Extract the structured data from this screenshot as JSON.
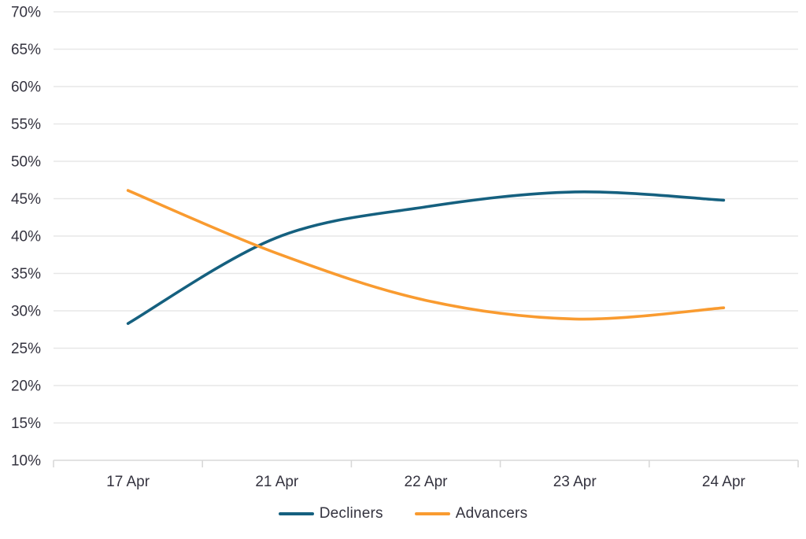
{
  "chart_data": {
    "type": "line",
    "title": "",
    "xlabel": "",
    "ylabel": "",
    "categories": [
      "17 Apr",
      "21 Apr",
      "22 Apr",
      "23 Apr",
      "24 Apr"
    ],
    "series": [
      {
        "name": "Decliners",
        "color": "#15607F",
        "values": [
          28.3,
          39.8,
          43.9,
          45.9,
          44.8
        ]
      },
      {
        "name": "Advancers",
        "color": "#F99B30",
        "values": [
          46.1,
          37.7,
          31.4,
          28.9,
          30.4
        ]
      }
    ],
    "ylim": [
      10,
      70
    ],
    "ytick_step": 5,
    "ytick_labels": [
      "70%",
      "65%",
      "60%",
      "55%",
      "50%",
      "45%",
      "40%",
      "35%",
      "30%",
      "25%",
      "20%",
      "15%",
      "10%"
    ],
    "grid": true,
    "line_smoothing": true,
    "legend_position": "bottom",
    "colors": {
      "axis_text": "#34333F",
      "gridline": "#E7E7E7",
      "axis_line": "#D8D8D8",
      "background": "#FFFFFF"
    }
  }
}
